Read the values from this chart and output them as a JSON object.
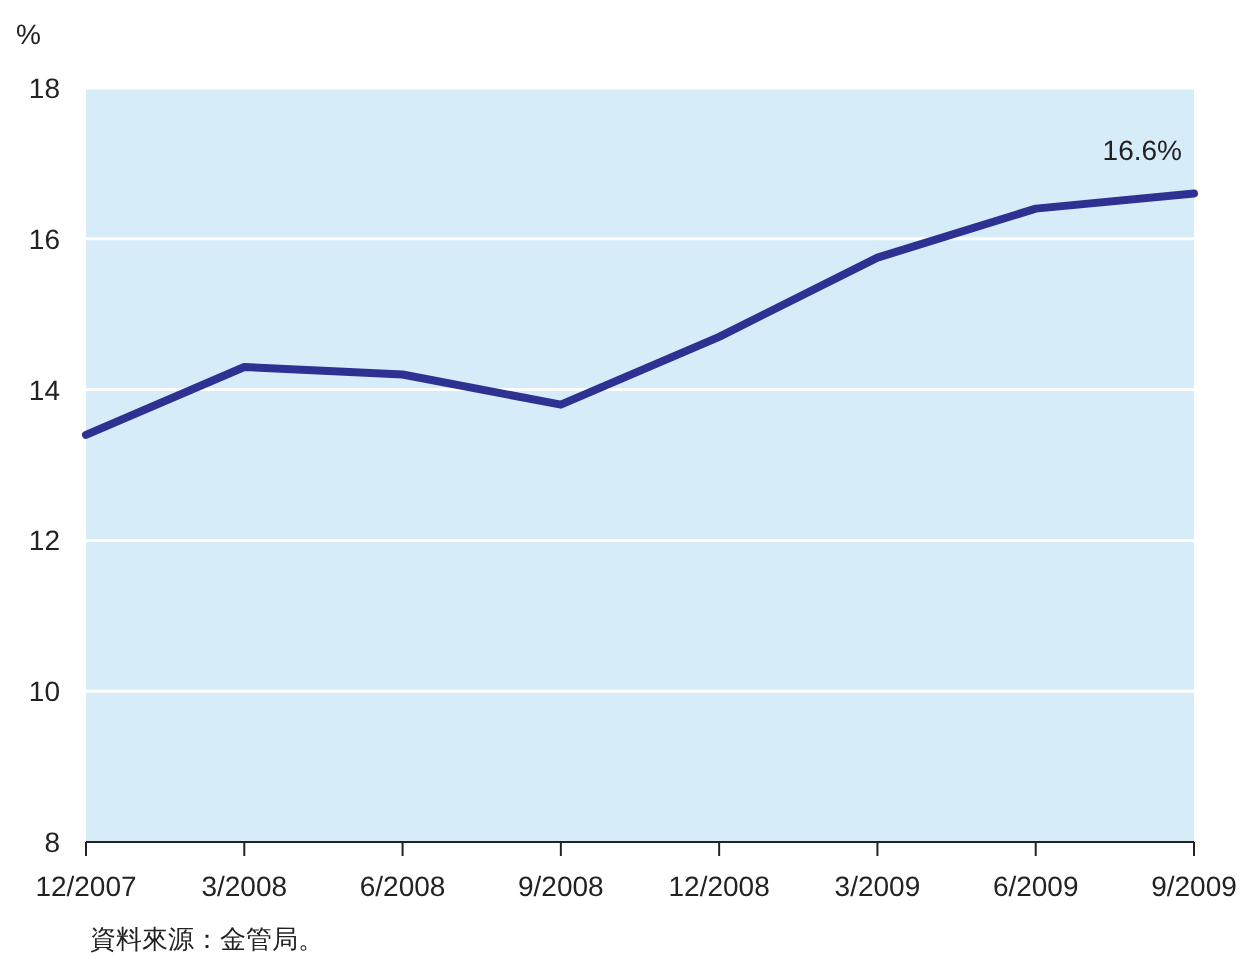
{
  "chart_data": {
    "type": "line",
    "ylabel": "%",
    "categories": [
      "12/2007",
      "3/2008",
      "6/2008",
      "9/2008",
      "12/2008",
      "3/2009",
      "6/2009",
      "9/2009"
    ],
    "series": [
      {
        "color": "#2e3192",
        "values": [
          13.4,
          14.3,
          14.2,
          13.8,
          14.7,
          15.75,
          16.4,
          16.6
        ]
      }
    ],
    "ylim": [
      8,
      18
    ],
    "yticks": [
      8,
      10,
      12,
      14,
      16,
      18
    ],
    "grid": "y",
    "annotations": [
      {
        "text": "16.6%",
        "x": "9/2009",
        "y": 16.6
      },
      "資料來源：金管局。"
    ]
  }
}
